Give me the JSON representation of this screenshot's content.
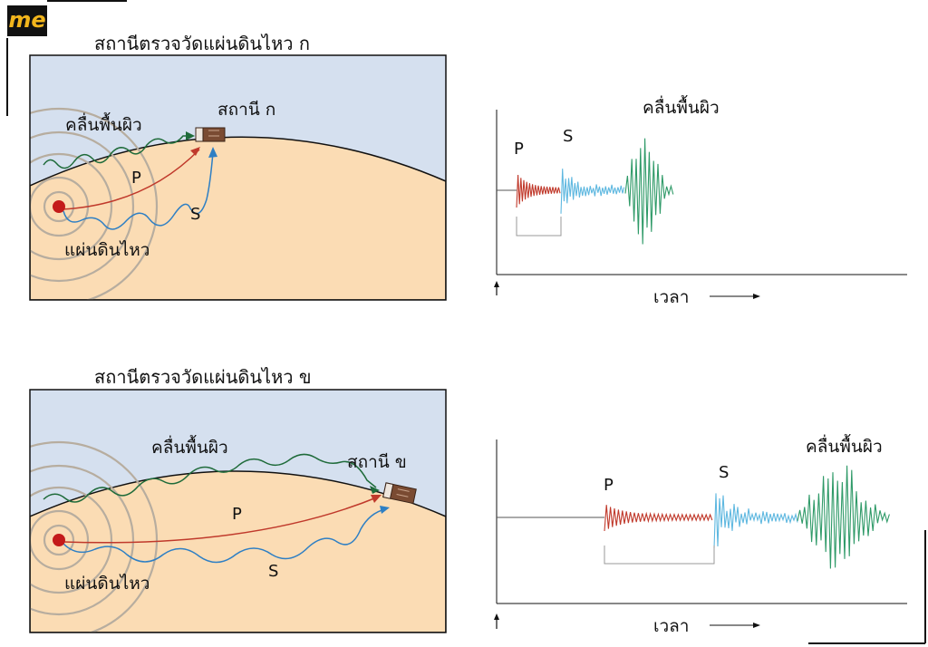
{
  "logo": {
    "text": "me"
  },
  "panel_a": {
    "title": "สถานีตรวจวัดแผ่นดินไหว ก",
    "station_label": "สถานี ก",
    "surface_wave_label": "คลื่นพื้นผิว",
    "p_label": "P",
    "s_label": "S",
    "quake_label": "แผ่นดินไหว",
    "graph": {
      "p_label": "P",
      "s_label": "S",
      "surface_label": "คลื่นพื้นผิว",
      "time_label": "เวลา"
    }
  },
  "panel_b": {
    "title": "สถานีตรวจวัดแผ่นดินไหว ข",
    "station_label": "สถานี ข",
    "surface_wave_label": "คลื่นพื้นผิว",
    "p_label": "P",
    "s_label": "S",
    "quake_label": "แผ่นดินไหว",
    "graph": {
      "p_label": "P",
      "s_label": "S",
      "surface_label": "คลื่นพื้นผิว",
      "time_label": "เวลา"
    }
  },
  "colors": {
    "sky": "#d5e0ef",
    "ground": "#fbdcb4",
    "p_wave": "#c0392b",
    "s_wave": "#2e7fc4",
    "s_trace": "#5fb8e0",
    "surface_wave": "#1f6b3a",
    "surface_trace": "#2f9a68",
    "epicenter": "#c41a1a",
    "station": "#7a4b32"
  }
}
